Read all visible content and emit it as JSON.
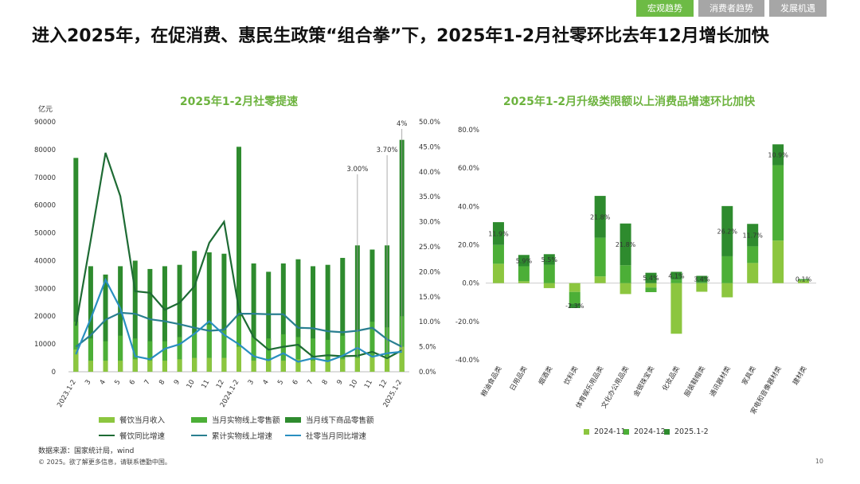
{
  "header": {
    "tabs": [
      "宏观趋势",
      "消费者趋势",
      "发展机遇"
    ]
  },
  "title": "进入2025年，在促消费、惠民生政策“组合拳”下，2025年1-2月社零环比去年12月增长加快",
  "footer": {
    "source": "数据来源：国家统计局，wind",
    "copyright": "© 2025。欲了解更多信息，请联系德勤中国。",
    "page": "10"
  },
  "colors": {
    "light": "#8cc63f",
    "mid": "#4caf37",
    "dark": "#2e8b2e",
    "darkest": "#1e6b34",
    "blue": "#2a8fc0",
    "teal": "#2a7f90"
  },
  "chart_data": [
    {
      "type": "bar",
      "title": "2025年1-2月社零提速",
      "ylabel": "亿元",
      "ylim": [
        0,
        90000
      ],
      "y2lim": [
        0,
        50
      ],
      "y_ticks": [
        "0",
        "10000",
        "20000",
        "30000",
        "40000",
        "50000",
        "60000",
        "70000",
        "80000",
        "90000"
      ],
      "y2_ticks": [
        "0.0%",
        "5.0%",
        "10.0%",
        "15.0%",
        "20.0%",
        "25.0%",
        "30.0%",
        "35.0%",
        "40.0%",
        "45.0%",
        "50.0%"
      ],
      "categories": [
        "2023.1-2",
        "3",
        "4",
        "5",
        "6",
        "7",
        "8",
        "9",
        "10",
        "11",
        "12",
        "2024.1-2",
        "3",
        "4",
        "5",
        "6",
        "7",
        "8",
        "9",
        "10",
        "11",
        "12",
        "2025.1-2"
      ],
      "bars": [
        {
          "name": "餐饮当月收入",
          "values": [
            8000,
            4000,
            4000,
            4000,
            4500,
            4000,
            4000,
            4500,
            5000,
            5000,
            5000,
            9000,
            4000,
            4000,
            4000,
            4500,
            4000,
            4000,
            4500,
            5000,
            5500,
            5500,
            9000
          ]
        },
        {
          "name": "当月实物线上零售额",
          "values": [
            18000,
            12000,
            11000,
            13000,
            12000,
            11000,
            11000,
            12500,
            14000,
            17000,
            15000,
            20000,
            12500,
            12000,
            13500,
            12500,
            12000,
            11500,
            13000,
            14500,
            18000,
            16000,
            20000
          ]
        },
        {
          "name": "当月线下商品零售额",
          "values": [
            77000,
            38000,
            35000,
            38000,
            40000,
            37000,
            38000,
            38500,
            43500,
            43000,
            42500,
            81000,
            39000,
            36000,
            39000,
            40500,
            38000,
            38500,
            41000,
            45500,
            44000,
            45500,
            83500
          ]
        }
      ],
      "lines": [
        {
          "name": "餐饮同比增速",
          "values": [
            9.2,
            26.3,
            43.8,
            35.1,
            16.1,
            15.8,
            12.4,
            13.8,
            17.1,
            25.8,
            30.0,
            12.5,
            6.9,
            4.4,
            5.0,
            5.4,
            3.0,
            3.3,
            3.1,
            3.2,
            4.0,
            2.7,
            4.3
          ]
        },
        {
          "name": "累计实物线上增速",
          "values": [
            5.0,
            7.3,
            10.4,
            11.8,
            11.6,
            10.5,
            10.1,
            9.5,
            8.8,
            8.2,
            8.4,
            11.6,
            11.6,
            11.5,
            11.5,
            8.8,
            8.7,
            8.1,
            7.9,
            8.2,
            8.8,
            6.5,
            5.0
          ]
        },
        {
          "name": "社零当月同比增速",
          "values": [
            3.5,
            10.6,
            18.4,
            12.7,
            3.1,
            2.5,
            4.6,
            5.5,
            7.6,
            10.1,
            7.4,
            5.5,
            3.1,
            2.3,
            3.7,
            2.0,
            2.7,
            2.1,
            3.2,
            4.8,
            3.0,
            3.7,
            4.0
          ]
        }
      ],
      "annotations": [
        "3.00%",
        "3.70%",
        "4%"
      ]
    },
    {
      "type": "bar",
      "title": "2025年1-2月升级类限额以上消费品增速环比加快",
      "ylim": [
        -40,
        80
      ],
      "y_ticks": [
        "-40.0%",
        "-20.0%",
        "0.0%",
        "20.0%",
        "40.0%",
        "60.0%",
        "80.0%"
      ],
      "categories": [
        "粮油食品类",
        "日用品类",
        "烟酒类",
        "饮料类",
        "体育娱乐用品类",
        "文化办公用品类",
        "金银珠宝类",
        "化妆品类",
        "服装鞋帽类",
        "通讯器材类",
        "家具类",
        "家电和音像器材类",
        "建材类"
      ],
      "series": [
        {
          "name": "2024-11",
          "values": [
            10.1,
            1.0,
            -2.6,
            -4.6,
            3.5,
            -5.7,
            -2.3,
            -26.4,
            -4.5,
            -7.4,
            10.5,
            22.2,
            1.4
          ]
        },
        {
          "name": "2024-12",
          "values": [
            9.8,
            7.8,
            9.6,
            -6.1,
            20.2,
            9.3,
            -2.4,
            1.8,
            0.4,
            14.0,
            8.7,
            39.3,
            0.6
          ]
        },
        {
          "name": "2025.1-2",
          "values": [
            11.9,
            5.9,
            5.5,
            -2.3,
            21.8,
            21.8,
            5.4,
            4.1,
            3.4,
            26.2,
            11.7,
            10.9,
            0.1
          ]
        }
      ],
      "labels": [
        "11.9%",
        "5.9%",
        "5.5%",
        "-2.3%",
        "21.8%",
        "21.8%",
        "5.4%",
        "4.1%",
        "3.4%",
        "26.2%",
        "11.7%",
        "10.9%",
        "0.1%"
      ]
    }
  ]
}
